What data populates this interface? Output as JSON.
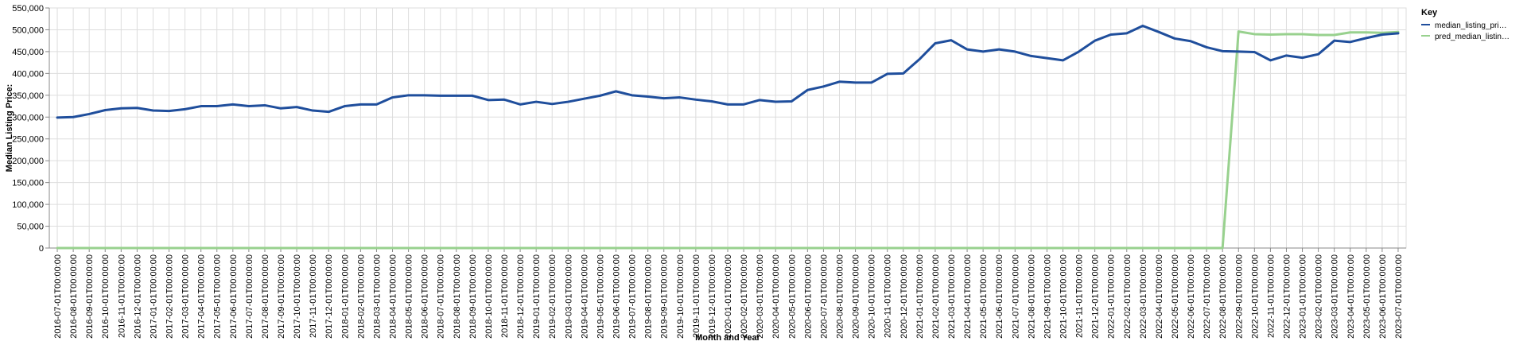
{
  "chart_data": {
    "type": "line",
    "xlabel": "Month and Year",
    "ylabel": "Median Listing Price:",
    "ylim": [
      0,
      550000
    ],
    "yticks": [
      0,
      50000,
      100000,
      150000,
      200000,
      250000,
      300000,
      350000,
      400000,
      450000,
      500000,
      550000
    ],
    "ytick_labels": [
      "0",
      "50,000",
      "100,000",
      "150,000",
      "200,000",
      "250,000",
      "300,000",
      "350,000",
      "400,000",
      "450,000",
      "500,000",
      "550,000"
    ],
    "grid": true,
    "legend": {
      "title": "Key",
      "placement": "right"
    },
    "x": [
      "2016-07-01T00:00:00",
      "2016-08-01T00:00:00",
      "2016-09-01T00:00:00",
      "2016-10-01T00:00:00",
      "2016-11-01T00:00:00",
      "2016-12-01T00:00:00",
      "2017-01-01T00:00:00",
      "2017-02-01T00:00:00",
      "2017-03-01T00:00:00",
      "2017-04-01T00:00:00",
      "2017-05-01T00:00:00",
      "2017-06-01T00:00:00",
      "2017-07-01T00:00:00",
      "2017-08-01T00:00:00",
      "2017-09-01T00:00:00",
      "2017-10-01T00:00:00",
      "2017-11-01T00:00:00",
      "2017-12-01T00:00:00",
      "2018-01-01T00:00:00",
      "2018-02-01T00:00:00",
      "2018-03-01T00:00:00",
      "2018-04-01T00:00:00",
      "2018-05-01T00:00:00",
      "2018-06-01T00:00:00",
      "2018-07-01T00:00:00",
      "2018-08-01T00:00:00",
      "2018-09-01T00:00:00",
      "2018-10-01T00:00:00",
      "2018-11-01T00:00:00",
      "2018-12-01T00:00:00",
      "2019-01-01T00:00:00",
      "2019-02-01T00:00:00",
      "2019-03-01T00:00:00",
      "2019-04-01T00:00:00",
      "2019-05-01T00:00:00",
      "2019-06-01T00:00:00",
      "2019-07-01T00:00:00",
      "2019-08-01T00:00:00",
      "2019-09-01T00:00:00",
      "2019-10-01T00:00:00",
      "2019-11-01T00:00:00",
      "2019-12-01T00:00:00",
      "2020-01-01T00:00:00",
      "2020-02-01T00:00:00",
      "2020-03-01T00:00:00",
      "2020-04-01T00:00:00",
      "2020-05-01T00:00:00",
      "2020-06-01T00:00:00",
      "2020-07-01T00:00:00",
      "2020-08-01T00:00:00",
      "2020-09-01T00:00:00",
      "2020-10-01T00:00:00",
      "2020-11-01T00:00:00",
      "2020-12-01T00:00:00",
      "2021-01-01T00:00:00",
      "2021-02-01T00:00:00",
      "2021-03-01T00:00:00",
      "2021-04-01T00:00:00",
      "2021-05-01T00:00:00",
      "2021-06-01T00:00:00",
      "2021-07-01T00:00:00",
      "2021-08-01T00:00:00",
      "2021-09-01T00:00:00",
      "2021-10-01T00:00:00",
      "2021-11-01T00:00:00",
      "2021-12-01T00:00:00",
      "2022-01-01T00:00:00",
      "2022-02-01T00:00:00",
      "2022-03-01T00:00:00",
      "2022-04-01T00:00:00",
      "2022-05-01T00:00:00",
      "2022-06-01T00:00:00",
      "2022-07-01T00:00:00",
      "2022-08-01T00:00:00",
      "2022-09-01T00:00:00",
      "2022-10-01T00:00:00",
      "2022-11-01T00:00:00",
      "2022-12-01T00:00:00",
      "2023-01-01T00:00:00",
      "2023-02-01T00:00:00",
      "2023-03-01T00:00:00",
      "2023-04-01T00:00:00",
      "2023-05-01T00:00:00",
      "2023-06-01T00:00:00",
      "2023-07-01T00:00:00"
    ],
    "series": [
      {
        "name": "median_listing_pri…",
        "color": "#1f4e9c",
        "values": [
          299000,
          300000,
          307000,
          316000,
          320000,
          321000,
          315000,
          314000,
          318000,
          325000,
          325000,
          329000,
          325000,
          327000,
          320000,
          323000,
          315000,
          312000,
          325000,
          329000,
          329000,
          345000,
          350000,
          350000,
          349000,
          349000,
          349000,
          339000,
          340000,
          329000,
          335000,
          330000,
          335000,
          342000,
          349000,
          359000,
          350000,
          347000,
          343000,
          345000,
          340000,
          336000,
          329000,
          329000,
          339000,
          335000,
          336000,
          362000,
          370000,
          381000,
          379000,
          379000,
          399000,
          400000,
          432000,
          469000,
          476000,
          455000,
          450000,
          455000,
          450000,
          440000,
          435000,
          430000,
          450000,
          475000,
          489000,
          492000,
          509000,
          495000,
          480000,
          474000,
          460000,
          451000,
          450000,
          449000,
          430000,
          441000,
          436000,
          444000,
          475000,
          472000,
          481000,
          489000,
          492000
        ]
      },
      {
        "name": "pred_median_listin…",
        "color": "#98d18e",
        "values": [
          0,
          0,
          0,
          0,
          0,
          0,
          0,
          0,
          0,
          0,
          0,
          0,
          0,
          0,
          0,
          0,
          0,
          0,
          0,
          0,
          0,
          0,
          0,
          0,
          0,
          0,
          0,
          0,
          0,
          0,
          0,
          0,
          0,
          0,
          0,
          0,
          0,
          0,
          0,
          0,
          0,
          0,
          0,
          0,
          0,
          0,
          0,
          0,
          0,
          0,
          0,
          0,
          0,
          0,
          0,
          0,
          0,
          0,
          0,
          0,
          0,
          0,
          0,
          0,
          0,
          0,
          0,
          0,
          0,
          0,
          0,
          0,
          0,
          0,
          496000,
          490000,
          489000,
          490000,
          490000,
          488000,
          488000,
          494000,
          494000,
          493000,
          495000
        ]
      }
    ]
  }
}
